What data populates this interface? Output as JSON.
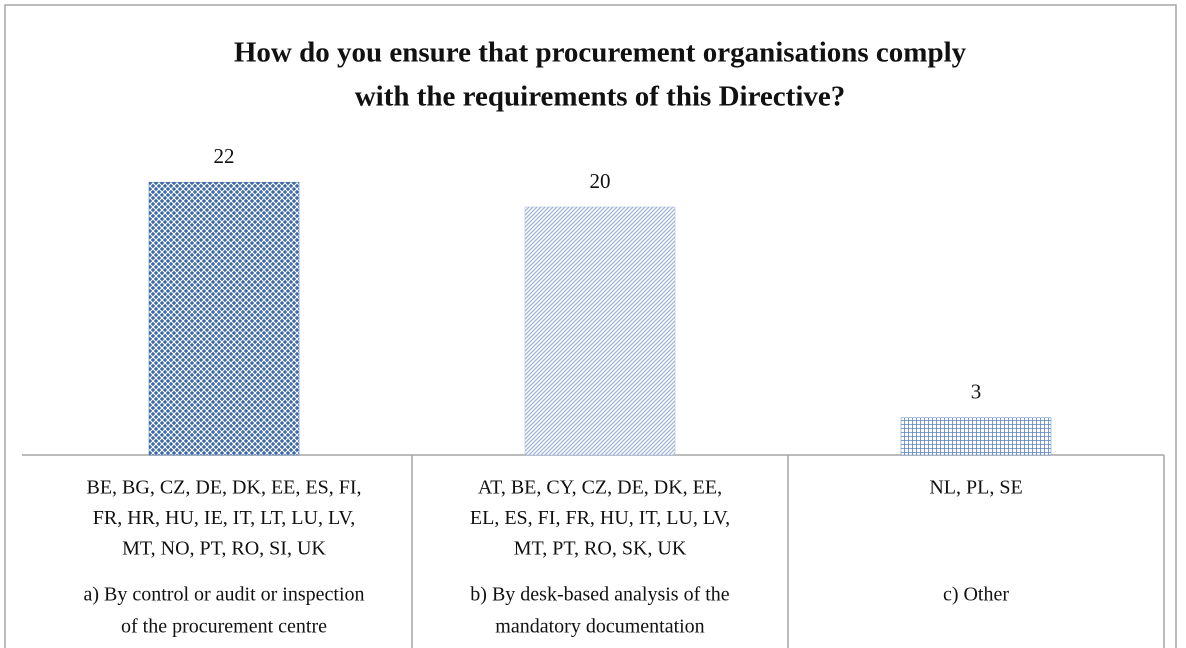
{
  "chart_data": {
    "type": "bar",
    "title": [
      "How do you ensure that procurement organisations comply",
      "with the requirements of this Directive?"
    ],
    "categories": [
      [
        "a) By control or audit or inspection",
        "of the procurement centre"
      ],
      [
        "b) By desk-based analysis of the",
        "mandatory documentation"
      ],
      [
        "c) Other"
      ]
    ],
    "countries": [
      [
        "BE, BG, CZ, DE, DK, EE, ES,  FI,",
        "FR, HR, HU, IE, IT, LT, LU, LV,",
        "MT, NO, PT, RO, SI, UK"
      ],
      [
        "AT, BE, CY, CZ, DE, DK, EE,",
        "EL, ES, FI,  FR, HU, IT, LU, LV,",
        "MT, PT, RO, SK, UK"
      ],
      [
        "NL, PL,  SE"
      ]
    ],
    "values": [
      22,
      20,
      3
    ],
    "colors": [
      "#3f6aa8",
      "#9fb6d8",
      "#5b84c0"
    ]
  }
}
